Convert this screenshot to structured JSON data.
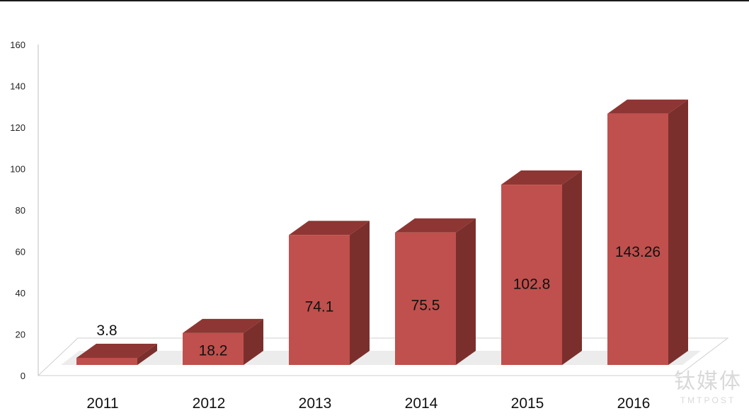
{
  "chart_data": {
    "type": "bar",
    "categories": [
      "2011",
      "2012",
      "2013",
      "2014",
      "2015",
      "2016"
    ],
    "values": [
      3.8,
      18.2,
      74.1,
      75.5,
      102.8,
      143.26
    ],
    "data_labels": [
      "3.8",
      "18.2",
      "74.1",
      "75.5",
      "102.8",
      "143.26"
    ],
    "y_ticks": [
      0,
      20,
      40,
      60,
      80,
      100,
      120,
      140,
      160
    ],
    "ylim": [
      0,
      160
    ],
    "grid": false,
    "three_d": true,
    "colors": {
      "bar_front": "#c0504d",
      "bar_top": "#8e3633",
      "bar_side": "#7b2f2c",
      "floor_shadow": "#dddddd"
    }
  },
  "watermark": {
    "chinese": "钛媒体",
    "english": "TMTPOST"
  }
}
